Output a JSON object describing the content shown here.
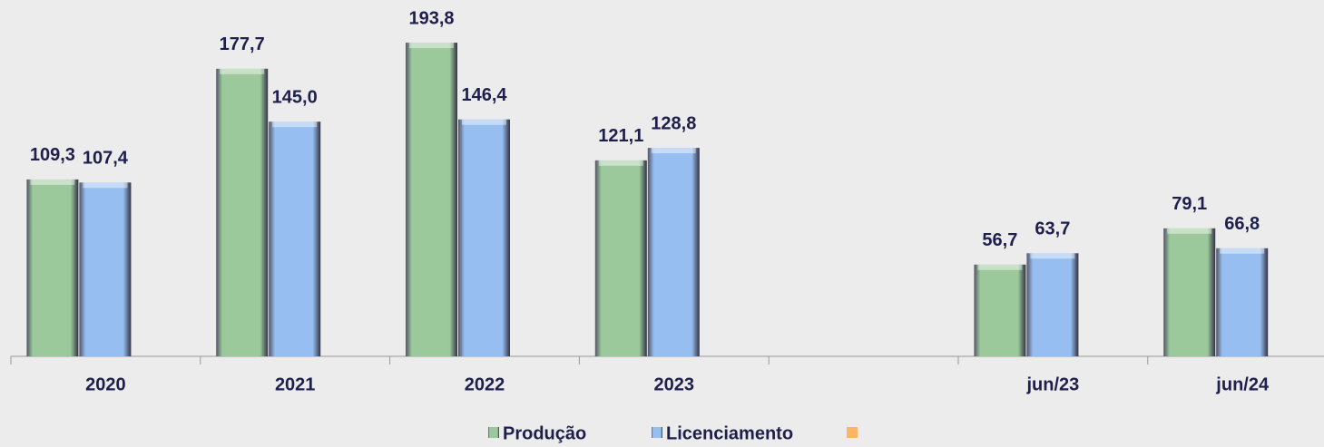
{
  "chart_data": {
    "type": "bar",
    "categories": [
      "2020",
      "2021",
      "2022",
      "2023",
      null,
      "jun/23",
      "jun/24"
    ],
    "series": [
      {
        "name": "Produção",
        "color": "#9bc99b",
        "values": [
          109.3,
          177.7,
          193.8,
          121.1,
          null,
          56.7,
          79.1
        ],
        "value_labels": [
          "109,3",
          "177,7",
          "193,8",
          "121,1",
          null,
          "56,7",
          "79,1"
        ]
      },
      {
        "name": "Licenciamento",
        "color": "#97bef0",
        "values": [
          107.4,
          145.0,
          146.4,
          128.8,
          null,
          63.7,
          66.8
        ],
        "value_labels": [
          "107,4",
          "145,0",
          "146,4",
          "128,8",
          null,
          "63,7",
          "66,8"
        ]
      }
    ],
    "ylim": [
      0,
      200
    ],
    "legend": "bottom"
  }
}
